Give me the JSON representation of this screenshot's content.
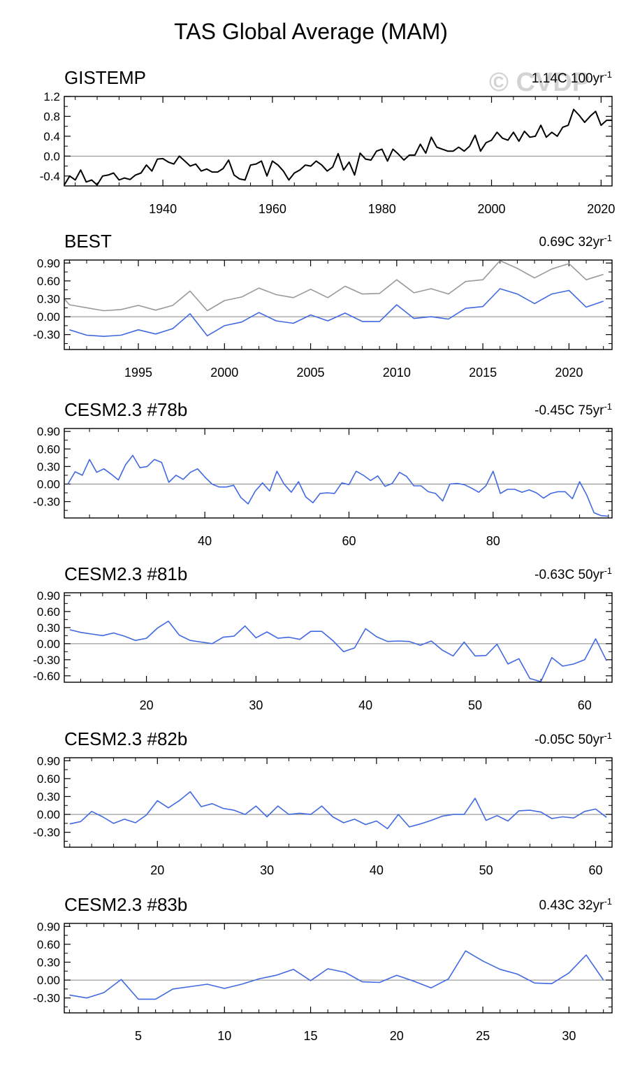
{
  "figure": {
    "title": "TAS Global Average (MAM)",
    "watermark": "© CVDP"
  },
  "colors": {
    "obs_line": "#000000",
    "model_line": "#4169e1",
    "obs_ref_line": "#999999",
    "zero_line": "#888888",
    "frame": "#000000"
  },
  "chart_data": [
    {
      "type": "line",
      "name": "GISTEMP",
      "annotation": "1.14C 100yr",
      "annotation_sup": "-1",
      "xlim": [
        1922,
        2022
      ],
      "ylim": [
        -0.6,
        1.2
      ],
      "yticks": [
        -0.4,
        0.0,
        0.4,
        0.8,
        1.2
      ],
      "yticklabels": [
        "-0.4",
        "0.0",
        "0.4",
        "0.8",
        "1.2"
      ],
      "xticks": [
        1940,
        1960,
        1980,
        2000,
        2020
      ],
      "series": [
        {
          "name": "GISTEMP",
          "color": "#000000",
          "x": [
            1922,
            1923,
            1924,
            1925,
            1926,
            1927,
            1928,
            1929,
            1930,
            1931,
            1932,
            1933,
            1934,
            1935,
            1936,
            1937,
            1938,
            1939,
            1940,
            1941,
            1942,
            1943,
            1944,
            1945,
            1946,
            1947,
            1948,
            1949,
            1950,
            1951,
            1952,
            1953,
            1954,
            1955,
            1956,
            1957,
            1958,
            1959,
            1960,
            1961,
            1962,
            1963,
            1964,
            1965,
            1966,
            1967,
            1968,
            1969,
            1970,
            1971,
            1972,
            1973,
            1974,
            1975,
            1976,
            1977,
            1978,
            1979,
            1980,
            1981,
            1982,
            1983,
            1984,
            1985,
            1986,
            1987,
            1988,
            1989,
            1990,
            1991,
            1992,
            1993,
            1994,
            1995,
            1996,
            1997,
            1998,
            1999,
            2000,
            2001,
            2002,
            2003,
            2004,
            2005,
            2006,
            2007,
            2008,
            2009,
            2010,
            2011,
            2012,
            2013,
            2014,
            2015,
            2016,
            2017,
            2018,
            2019,
            2020,
            2021,
            2022
          ],
          "y": [
            -0.58,
            -0.4,
            -0.48,
            -0.28,
            -0.52,
            -0.48,
            -0.58,
            -0.4,
            -0.38,
            -0.34,
            -0.48,
            -0.44,
            -0.47,
            -0.38,
            -0.34,
            -0.18,
            -0.3,
            -0.06,
            -0.05,
            -0.12,
            -0.16,
            0.0,
            -0.1,
            -0.2,
            -0.16,
            -0.3,
            -0.26,
            -0.32,
            -0.32,
            -0.25,
            -0.08,
            -0.38,
            -0.46,
            -0.48,
            -0.18,
            -0.16,
            -0.1,
            -0.4,
            -0.1,
            -0.18,
            -0.3,
            -0.48,
            -0.34,
            -0.28,
            -0.18,
            -0.2,
            -0.1,
            -0.18,
            -0.3,
            -0.22,
            0.05,
            -0.28,
            -0.12,
            -0.38,
            0.06,
            -0.06,
            -0.08,
            0.1,
            0.14,
            -0.1,
            0.14,
            0.04,
            -0.08,
            0.02,
            0.02,
            0.24,
            0.06,
            0.38,
            0.18,
            0.14,
            0.1,
            0.1,
            0.18,
            0.1,
            0.2,
            0.42,
            0.1,
            0.27,
            0.32,
            0.48,
            0.36,
            0.32,
            0.48,
            0.3,
            0.5,
            0.38,
            0.4,
            0.62,
            0.38,
            0.48,
            0.4,
            0.58,
            0.62,
            0.94,
            0.82,
            0.68,
            0.8,
            0.9,
            0.62,
            0.72,
            0.72
          ]
        }
      ]
    },
    {
      "type": "line",
      "name": "BEST",
      "annotation": "0.69C 32yr",
      "annotation_sup": "-1",
      "xlim": [
        1990.7,
        2022.5
      ],
      "ylim": [
        -0.55,
        0.95
      ],
      "yticks": [
        -0.3,
        0.0,
        0.3,
        0.6,
        0.9
      ],
      "yticklabels": [
        "-0.30",
        "0.00",
        "0.30",
        "0.60",
        "0.90"
      ],
      "xticks": [
        1995,
        2000,
        2005,
        2010,
        2015,
        2020
      ],
      "series": [
        {
          "name": "BEST",
          "color": "#4169e1",
          "x": [
            1991,
            1992,
            1993,
            1994,
            1995,
            1996,
            1997,
            1998,
            1999,
            2000,
            2001,
            2002,
            2003,
            2004,
            2005,
            2006,
            2007,
            2008,
            2009,
            2010,
            2011,
            2012,
            2013,
            2014,
            2015,
            2016,
            2017,
            2018,
            2019,
            2020,
            2021,
            2022
          ],
          "y": [
            -0.22,
            -0.31,
            -0.33,
            -0.31,
            -0.22,
            -0.29,
            -0.2,
            0.05,
            -0.32,
            -0.15,
            -0.09,
            0.07,
            -0.07,
            -0.11,
            0.03,
            -0.07,
            0.06,
            -0.08,
            -0.08,
            0.2,
            -0.03,
            0.0,
            -0.04,
            0.14,
            0.17,
            0.47,
            0.38,
            0.22,
            0.38,
            0.44,
            0.16,
            0.26
          ]
        },
        {
          "name": "GISTEMP",
          "color": "#999999",
          "x": [
            1990.7,
            1991,
            1992,
            1993,
            1994,
            1995,
            1996,
            1997,
            1998,
            1999,
            2000,
            2001,
            2002,
            2003,
            2004,
            2005,
            2006,
            2007,
            2008,
            2009,
            2010,
            2011,
            2012,
            2013,
            2014,
            2015,
            2016,
            2017,
            2018,
            2019,
            2020,
            2021,
            2022
          ],
          "y": [
            0.3,
            0.2,
            0.15,
            0.1,
            0.12,
            0.19,
            0.11,
            0.19,
            0.43,
            0.1,
            0.27,
            0.33,
            0.48,
            0.37,
            0.32,
            0.46,
            0.32,
            0.51,
            0.38,
            0.39,
            0.62,
            0.4,
            0.47,
            0.38,
            0.59,
            0.62,
            0.94,
            0.81,
            0.65,
            0.8,
            0.89,
            0.62,
            0.71
          ]
        }
      ]
    },
    {
      "type": "line",
      "name": "CESM2.3 #78b",
      "annotation": "-0.45C 75yr",
      "annotation_sup": "-1",
      "xlim": [
        20.5,
        96.5
      ],
      "ylim": [
        -0.58,
        0.95
      ],
      "yticks": [
        -0.3,
        0.0,
        0.3,
        0.6,
        0.9
      ],
      "yticklabels": [
        "-0.30",
        "0.00",
        "0.30",
        "0.60",
        "0.90"
      ],
      "xticks": [
        40,
        60,
        80
      ],
      "series": [
        {
          "name": "CESM2.3 #78b",
          "color": "#4169e1",
          "x": [
            21,
            22,
            23,
            24,
            25,
            26,
            27,
            28,
            29,
            30,
            31,
            32,
            33,
            34,
            35,
            36,
            37,
            38,
            39,
            40,
            41,
            42,
            43,
            44,
            45,
            46,
            47,
            48,
            49,
            50,
            51,
            52,
            53,
            54,
            55,
            56,
            57,
            58,
            59,
            60,
            61,
            62,
            63,
            64,
            65,
            66,
            67,
            68,
            69,
            70,
            71,
            72,
            73,
            74,
            75,
            76,
            77,
            78,
            79,
            80,
            81,
            82,
            83,
            84,
            85,
            86,
            87,
            88,
            89,
            90,
            91,
            92,
            93,
            94,
            95,
            96
          ],
          "y": [
            0.0,
            0.21,
            0.15,
            0.42,
            0.2,
            0.26,
            0.17,
            0.07,
            0.33,
            0.49,
            0.28,
            0.3,
            0.42,
            0.37,
            0.03,
            0.15,
            0.08,
            0.2,
            0.26,
            0.12,
            0.0,
            -0.05,
            -0.05,
            -0.02,
            -0.23,
            -0.34,
            -0.12,
            0.02,
            -0.12,
            0.22,
            0.0,
            -0.14,
            0.04,
            -0.22,
            -0.32,
            -0.16,
            -0.15,
            -0.16,
            0.02,
            -0.01,
            0.22,
            0.15,
            0.06,
            0.14,
            -0.04,
            0.01,
            0.2,
            0.13,
            -0.03,
            -0.03,
            -0.13,
            -0.16,
            -0.29,
            0.0,
            0.01,
            -0.01,
            -0.07,
            -0.14,
            -0.03,
            0.22,
            -0.16,
            -0.09,
            -0.09,
            -0.14,
            -0.1,
            -0.15,
            -0.24,
            -0.16,
            -0.13,
            -0.13,
            -0.25,
            0.04,
            -0.19,
            -0.49,
            -0.54,
            -0.55
          ]
        }
      ]
    },
    {
      "type": "line",
      "name": "CESM2.3 #81b",
      "annotation": "-0.63C 50yr",
      "annotation_sup": "-1",
      "xlim": [
        12.5,
        62.5
      ],
      "ylim": [
        -0.72,
        0.95
      ],
      "yticks": [
        -0.6,
        -0.3,
        0.0,
        0.3,
        0.6,
        0.9
      ],
      "yticklabels": [
        "-0.60",
        "-0.30",
        "0.00",
        "0.30",
        "0.60",
        "0.90"
      ],
      "xticks": [
        20,
        30,
        40,
        50,
        60
      ],
      "series": [
        {
          "name": "CESM2.3 #81b",
          "color": "#4169e1",
          "x": [
            13,
            14,
            15,
            16,
            17,
            18,
            19,
            20,
            21,
            22,
            23,
            24,
            25,
            26,
            27,
            28,
            29,
            30,
            31,
            32,
            33,
            34,
            35,
            36,
            37,
            38,
            39,
            40,
            41,
            42,
            43,
            44,
            45,
            46,
            47,
            48,
            49,
            50,
            51,
            52,
            53,
            54,
            55,
            56,
            57,
            58,
            59,
            60,
            61,
            62
          ],
          "y": [
            0.26,
            0.21,
            0.18,
            0.15,
            0.2,
            0.14,
            0.06,
            0.1,
            0.29,
            0.42,
            0.16,
            0.06,
            0.03,
            0.0,
            0.12,
            0.14,
            0.33,
            0.11,
            0.22,
            0.1,
            0.12,
            0.08,
            0.23,
            0.23,
            0.06,
            -0.15,
            -0.08,
            0.28,
            0.13,
            0.04,
            0.05,
            0.04,
            -0.03,
            0.05,
            -0.12,
            -0.23,
            0.03,
            -0.23,
            -0.22,
            -0.01,
            -0.38,
            -0.28,
            -0.65,
            -0.71,
            -0.26,
            -0.42,
            -0.38,
            -0.3,
            0.09,
            -0.32
          ]
        }
      ]
    },
    {
      "type": "line",
      "name": "CESM2.3 #82b",
      "annotation": "-0.05C 50yr",
      "annotation_sup": "-1",
      "xlim": [
        11.5,
        61.5
      ],
      "ylim": [
        -0.55,
        0.95
      ],
      "yticks": [
        -0.3,
        0.0,
        0.3,
        0.6,
        0.9
      ],
      "yticklabels": [
        "-0.30",
        "0.00",
        "0.30",
        "0.60",
        "0.90"
      ],
      "xticks": [
        20,
        30,
        40,
        50,
        60
      ],
      "series": [
        {
          "name": "CESM2.3 #82b",
          "color": "#4169e1",
          "x": [
            12,
            13,
            14,
            15,
            16,
            17,
            18,
            19,
            20,
            21,
            22,
            23,
            24,
            25,
            26,
            27,
            28,
            29,
            30,
            31,
            32,
            33,
            34,
            35,
            36,
            37,
            38,
            39,
            40,
            41,
            42,
            43,
            44,
            45,
            46,
            47,
            48,
            49,
            50,
            51,
            52,
            53,
            54,
            55,
            56,
            57,
            58,
            59,
            60,
            61
          ],
          "y": [
            -0.16,
            -0.12,
            0.05,
            -0.04,
            -0.15,
            -0.08,
            -0.14,
            -0.01,
            0.23,
            0.11,
            0.23,
            0.38,
            0.13,
            0.18,
            0.1,
            0.07,
            0.0,
            0.14,
            -0.04,
            0.14,
            0.0,
            0.02,
            0.0,
            0.14,
            -0.04,
            -0.14,
            -0.08,
            -0.17,
            -0.11,
            -0.24,
            0.0,
            -0.21,
            -0.16,
            -0.1,
            -0.03,
            0.0,
            0.0,
            0.27,
            -0.1,
            -0.02,
            -0.11,
            0.06,
            0.07,
            0.04,
            -0.07,
            -0.04,
            -0.06,
            0.05,
            0.09,
            -0.05
          ]
        }
      ]
    },
    {
      "type": "line",
      "name": "CESM2.3 #83b",
      "annotation": "0.43C 32yr",
      "annotation_sup": "-1",
      "xlim": [
        0.7,
        32.5
      ],
      "ylim": [
        -0.55,
        0.95
      ],
      "yticks": [
        -0.3,
        0.0,
        0.3,
        0.6,
        0.9
      ],
      "yticklabels": [
        "-0.30",
        "0.00",
        "0.30",
        "0.60",
        "0.90"
      ],
      "xticks": [
        5,
        10,
        15,
        20,
        25,
        30
      ],
      "series": [
        {
          "name": "CESM2.3 #83b",
          "color": "#4169e1",
          "x": [
            1,
            2,
            3,
            4,
            5,
            6,
            7,
            8,
            9,
            10,
            11,
            12,
            13,
            14,
            15,
            16,
            17,
            18,
            19,
            20,
            21,
            22,
            23,
            24,
            25,
            26,
            27,
            28,
            29,
            30,
            31,
            32
          ],
          "y": [
            -0.25,
            -0.3,
            -0.21,
            0.01,
            -0.32,
            -0.32,
            -0.15,
            -0.11,
            -0.07,
            -0.14,
            -0.07,
            0.02,
            0.08,
            0.18,
            -0.01,
            0.19,
            0.13,
            -0.03,
            -0.04,
            0.08,
            -0.02,
            -0.13,
            0.02,
            0.49,
            0.32,
            0.18,
            0.1,
            -0.05,
            -0.06,
            0.12,
            0.42,
            0.0
          ]
        }
      ]
    }
  ]
}
